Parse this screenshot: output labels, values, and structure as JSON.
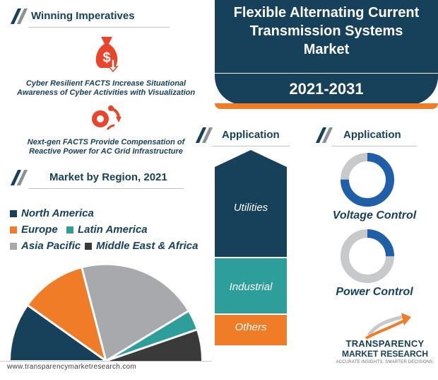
{
  "winning": {
    "title": "Winning Imperatives",
    "item1": [
      "Cyber Resilient FACTS Increase Situational",
      "Awareness of Cyber Activities with Visualization"
    ],
    "item2": [
      "Next-gen FACTS Provide Compensation of",
      "Reactive Power for AC Grid Infrastructure"
    ]
  },
  "banner": {
    "title": [
      "Flexible Alternating Current",
      "Transmission Systems",
      "Market"
    ],
    "years": "2021-2031"
  },
  "region": {
    "title": "Market by Region, 2021",
    "legend": {
      "north_america": "North America",
      "europe": "Europe",
      "latin_america": "Latin America",
      "asia_pacific": "Asia Pacific",
      "mea": "Middle East & Africa"
    }
  },
  "application_bar": {
    "title": "Application",
    "segments": [
      "Utilities",
      "Industrial",
      "Others"
    ]
  },
  "application_donut": {
    "title": "Application",
    "voltage": "Voltage Control",
    "power": "Power Control"
  },
  "footer": {
    "url": "www.transparencymarketresearch.com",
    "brand_line1": "TRANSPARENCY",
    "brand_line2": "MARKET RESEARCH",
    "brand_tagline": "ACCURATE INSIGHTS. SMARTER DECISIONS."
  },
  "colors": {
    "navy": "#17415a",
    "orange": "#f07c27",
    "teal": "#2e9e9a",
    "grey": "#a7a9ac",
    "dark": "#3a3a3a",
    "blue": "#1f5ea8"
  }
}
